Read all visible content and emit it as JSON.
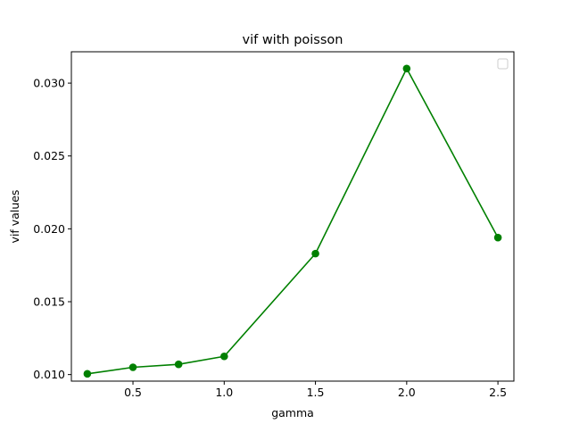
{
  "chart_data": {
    "type": "line",
    "title": "vif with poisson",
    "xlabel": "gamma",
    "ylabel": "vif values",
    "xlim": [
      0.1625,
      2.5875
    ],
    "ylim": [
      0.00955,
      0.03215
    ],
    "xticks": [
      0.5,
      1.0,
      1.5,
      2.0,
      2.5
    ],
    "xtick_labels": [
      "0.5",
      "1.0",
      "1.5",
      "2.0",
      "2.5"
    ],
    "yticks": [
      0.01,
      0.015,
      0.02,
      0.025,
      0.03
    ],
    "ytick_labels": [
      "0.010",
      "0.015",
      "0.020",
      "0.025",
      "0.030"
    ],
    "grid": false,
    "legend": "top-right",
    "series": [
      {
        "color": "#008000",
        "marker": "circle",
        "x": [
          0.25,
          0.5,
          0.75,
          1.0,
          1.5,
          2.0,
          2.5
        ],
        "y": [
          0.01005,
          0.0105,
          0.0107,
          0.01125,
          0.0183,
          0.031,
          0.0194
        ]
      }
    ]
  }
}
